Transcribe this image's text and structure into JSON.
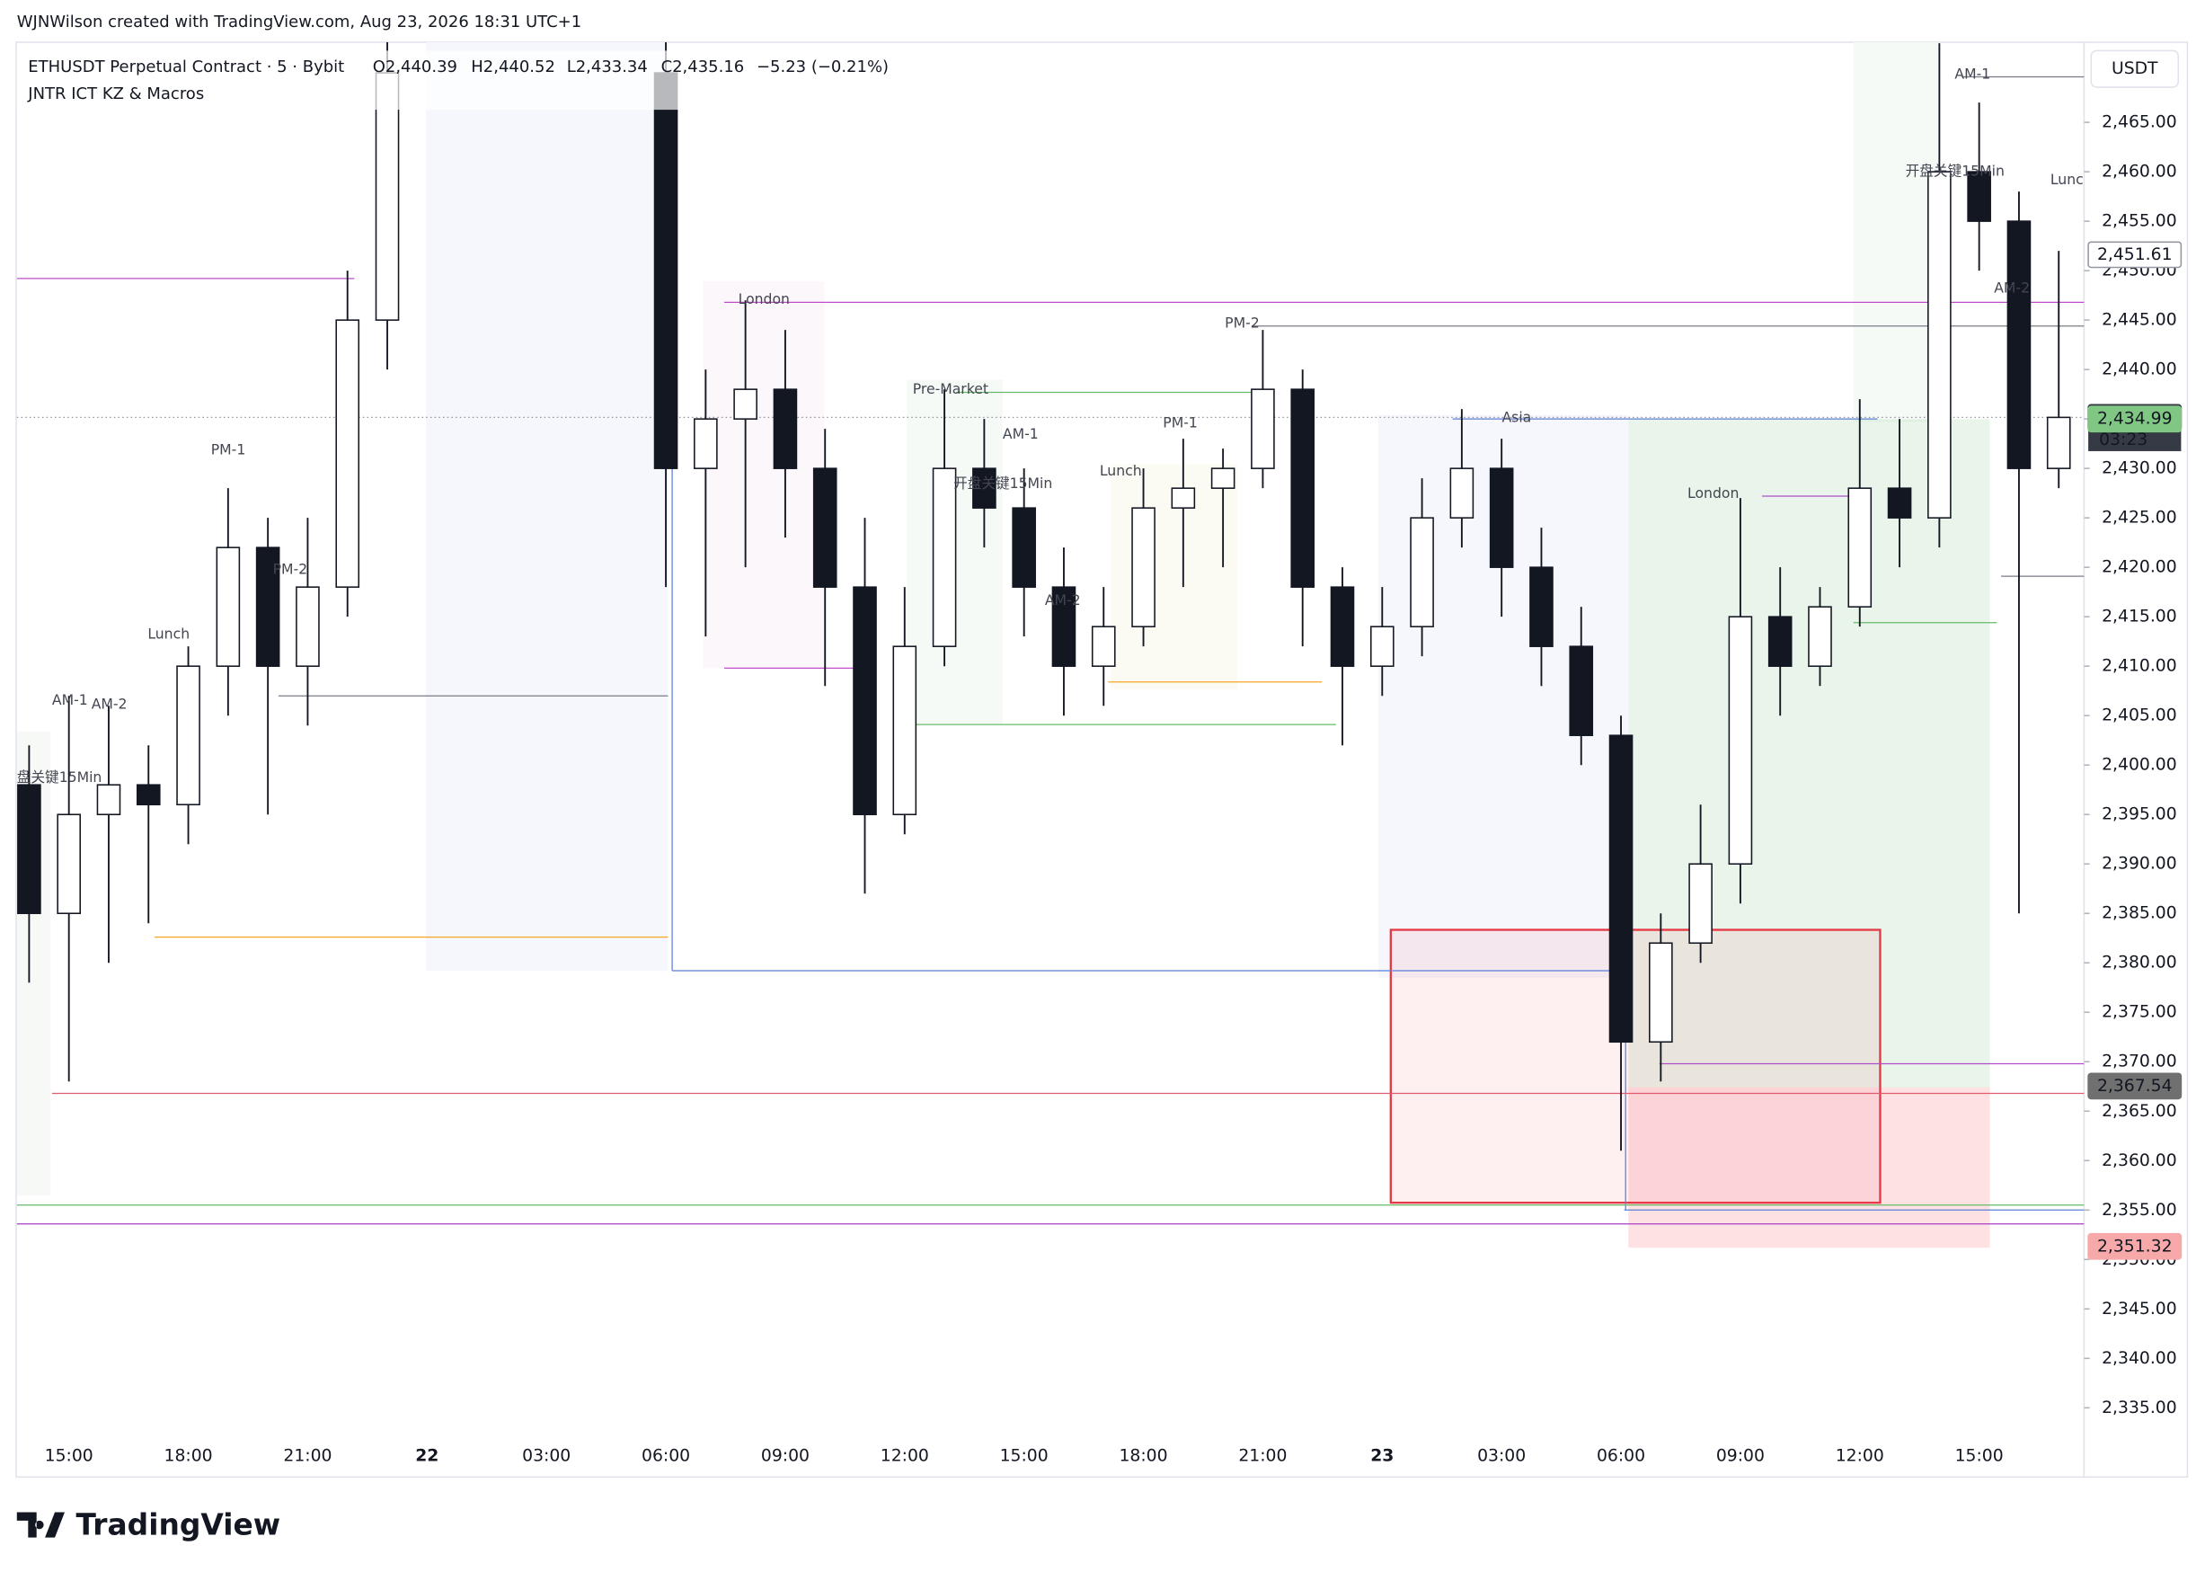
{
  "header": {
    "credit": "WJNWilson created with TradingView.com, Aug 23, 2026 18:31 UTC+1",
    "symbol": "ETHUSDT Perpetual Contract · 5 · Bybit",
    "ohlc": [
      "O2,440.39",
      "H2,440.52",
      "L2,433.34",
      "C2,435.16",
      "−5.23 (−0.21%)"
    ],
    "indicator": "JNTR ICT KZ & Macros",
    "currency": "USDT",
    "logo": "TradingView"
  },
  "chart_data": {
    "type": "candlestick",
    "categories": [
      null,
      "15:00",
      null,
      null,
      "18:00",
      null,
      null,
      "21:00",
      null,
      null,
      "22",
      null,
      null,
      "03:00",
      null,
      null,
      "06:00",
      null,
      null,
      "09:00",
      null,
      null,
      "12:00",
      null,
      null,
      "15:00",
      null,
      null,
      "18:00",
      null,
      null,
      "21:00",
      null,
      null,
      "23",
      null,
      null,
      "03:00",
      null,
      null,
      "06:00",
      null,
      null,
      "09:00",
      null,
      null,
      "12:00",
      null,
      null,
      "15:00",
      null,
      null
    ],
    "open": [
      2398,
      2385,
      2395,
      2398,
      2396,
      2410,
      2422,
      2410,
      2418,
      2445,
      null,
      null,
      null,
      null,
      null,
      null,
      2470,
      2430,
      2435,
      2438,
      2430,
      2418,
      2395,
      2412,
      2430,
      2426,
      2418,
      2410,
      2414,
      2426,
      2428,
      2430,
      2438,
      2418,
      2410,
      2414,
      2425,
      2430,
      2420,
      2412,
      2403,
      2372,
      2382,
      2390,
      2415,
      2410,
      2416,
      2428,
      2425,
      2460,
      2455,
      2430
    ],
    "high": [
      2402,
      2407,
      2406,
      2402,
      2412,
      2428,
      2425,
      2425,
      2450,
      2480,
      null,
      null,
      null,
      null,
      null,
      null,
      2478,
      2440,
      2447,
      2444,
      2434,
      2425,
      2418,
      2438,
      2435,
      2430,
      2422,
      2418,
      2430,
      2433,
      2432,
      2444,
      2440,
      2420,
      2418,
      2429,
      2436,
      2433,
      2424,
      2416,
      2405,
      2385,
      2396,
      2427,
      2420,
      2418,
      2437,
      2435,
      2473,
      2467,
      2458,
      2452
    ],
    "low": [
      2378,
      2368,
      2380,
      2384,
      2392,
      2405,
      2395,
      2404,
      2415,
      2440,
      null,
      null,
      null,
      null,
      null,
      null,
      2418,
      2413,
      2420,
      2423,
      2408,
      2387,
      2393,
      2410,
      2422,
      2413,
      2405,
      2406,
      2412,
      2418,
      2420,
      2428,
      2412,
      2402,
      2407,
      2411,
      2422,
      2415,
      2408,
      2400,
      2361,
      2368,
      2380,
      2386,
      2405,
      2408,
      2414,
      2420,
      2422,
      2450,
      2385,
      2428
    ],
    "close": [
      2385,
      2395,
      2398,
      2396,
      2410,
      2422,
      2410,
      2418,
      2445,
      2470,
      null,
      null,
      null,
      null,
      null,
      null,
      2430,
      2435,
      2438,
      2430,
      2418,
      2395,
      2412,
      2430,
      2426,
      2418,
      2410,
      2414,
      2426,
      2428,
      2430,
      2438,
      2418,
      2410,
      2414,
      2425,
      2430,
      2420,
      2412,
      2403,
      2372,
      2382,
      2390,
      2415,
      2410,
      2416,
      2428,
      2425,
      2460,
      2455,
      2430,
      2435.16
    ],
    "up_color": "#ffffff",
    "down_color": "#131722",
    "wick_color": "#131722",
    "ylim": [
      2328.0,
      2473.1
    ],
    "yticks": [
      {
        "value": 2335,
        "label": "2,335.00"
      },
      {
        "value": 2340,
        "label": "2,340.00"
      },
      {
        "value": 2345,
        "label": "2,345.00"
      },
      {
        "value": 2350,
        "label": "2,350.00"
      },
      {
        "value": 2355,
        "label": "2,355.00"
      },
      {
        "value": 2360,
        "label": "2,360.00"
      },
      {
        "value": 2365,
        "label": "2,365.00"
      },
      {
        "value": 2370,
        "label": "2,370.00"
      },
      {
        "value": 2375,
        "label": "2,375.00"
      },
      {
        "value": 2380,
        "label": "2,380.00"
      },
      {
        "value": 2385,
        "label": "2,385.00"
      },
      {
        "value": 2390,
        "label": "2,390.00"
      },
      {
        "value": 2395,
        "label": "2,395.00"
      },
      {
        "value": 2400,
        "label": "2,400.00"
      },
      {
        "value": 2405,
        "label": "2,405.00"
      },
      {
        "value": 2410,
        "label": "2,410.00"
      },
      {
        "value": 2415,
        "label": "2,415.00"
      },
      {
        "value": 2420,
        "label": "2,420.00"
      },
      {
        "value": 2425,
        "label": "2,425.00"
      },
      {
        "value": 2430,
        "label": "2,430.00"
      },
      {
        "value": 2435,
        "label": "2,435.00"
      },
      {
        "value": 2440,
        "label": "2,440.00"
      },
      {
        "value": 2445,
        "label": "2,445.00"
      },
      {
        "value": 2450,
        "label": "2,450.00"
      },
      {
        "value": 2455,
        "label": "2,455.00"
      },
      {
        "value": 2460,
        "label": "2,460.00"
      },
      {
        "value": 2465,
        "label": "2,465.00"
      }
    ],
    "levels": [
      {
        "value": 2449.2,
        "color": "#c04dc9"
      },
      {
        "value": 2407.0,
        "color": "#787b86"
      },
      {
        "value": 2382.6,
        "color": "#f5a623"
      },
      {
        "value": 2366.8,
        "color": "#e05d6f"
      },
      {
        "value": 2355.5,
        "color": "#66bb6a"
      },
      {
        "value": 2353.6,
        "color": "#b04dc9"
      },
      {
        "value": 2379.2,
        "color": "#5b7fd6"
      },
      {
        "value": 2446.8,
        "color": "#c04dc9"
      },
      {
        "value": 2444.4,
        "color": "#787b86"
      },
      {
        "value": 2437.7,
        "color": "#66bb6a"
      },
      {
        "value": 2435.0,
        "color": "#5b7fd6"
      },
      {
        "value": 2404.1,
        "color": "#66bb6a"
      },
      {
        "value": 2408.4,
        "color": "#f5a623"
      },
      {
        "value": 2409.8,
        "color": "#c04dc9"
      },
      {
        "value": 2369.8,
        "color": "#b04dc9"
      },
      {
        "value": 2355.0,
        "color": "#5b7fd6"
      },
      {
        "value": 2469.6,
        "color": "#787b86"
      },
      {
        "value": 2419.1,
        "color": "#787b86"
      },
      {
        "value": 2427.2,
        "color": "#b04dc9"
      },
      {
        "value": 2414.4,
        "color": "#66bb6a"
      }
    ],
    "annotations": [
      "London",
      "Pre-Market",
      "AM-1",
      "开盘关键15Min",
      "Lunch",
      "PM-1",
      "PM-2",
      "AM-2",
      "Asia",
      "London",
      "AM-1",
      "开盘关键15Min",
      "Lunc",
      "AM-2",
      "PM-1",
      "PM-2",
      "Lunch",
      "AM-1",
      "AM-2",
      "盘关键15Min"
    ],
    "price_labels": [
      {
        "value": 2451.61,
        "label": "2,451.61",
        "bg": "#ffffff",
        "fg": "#131722"
      },
      {
        "value": 2435.16,
        "label": "2,435.16",
        "bg": "#363a45",
        "fg": "#ffffff"
      },
      {
        "value": 2434.99,
        "label": "2,434.99",
        "bg": "#81c784",
        "fg": "#131722"
      },
      {
        "value": 2367.54,
        "label": "2,367.54",
        "bg": "#707070",
        "fg": "#ffffff"
      },
      {
        "value": 2351.32,
        "label": "2,351.32",
        "bg": "#f7a9a9",
        "fg": "#131722"
      }
    ],
    "countdown": "03:23"
  }
}
